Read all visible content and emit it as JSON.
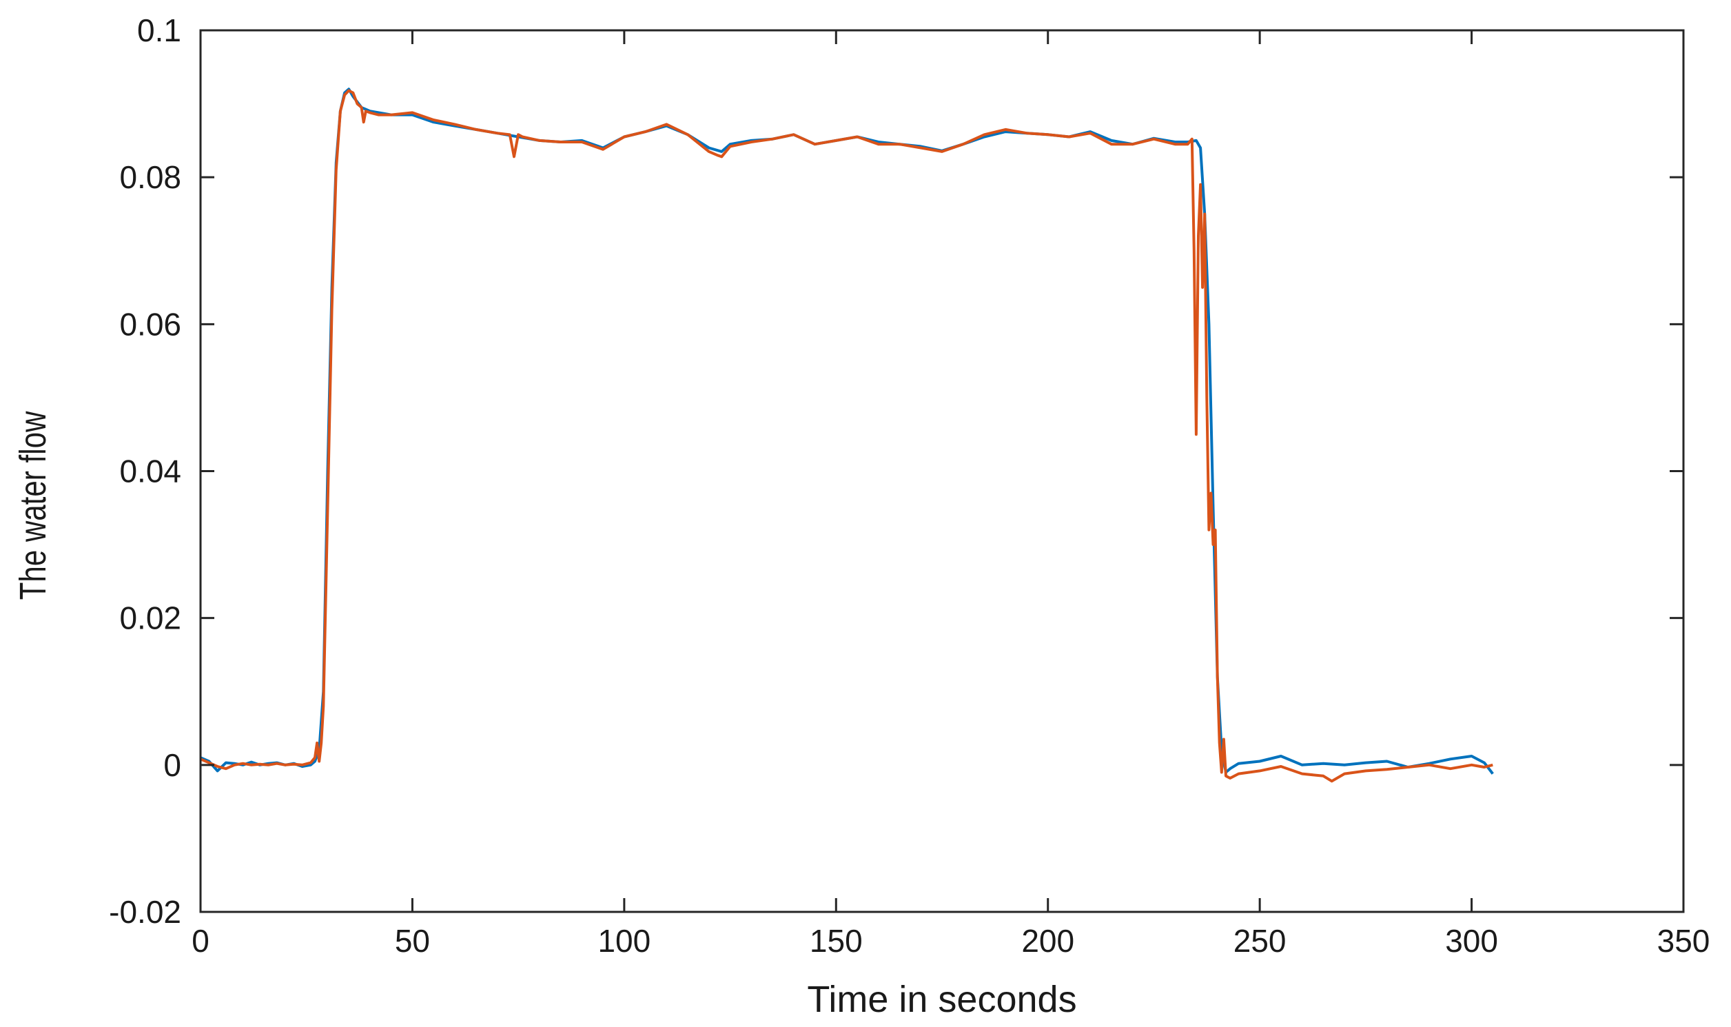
{
  "chart_data": {
    "type": "line",
    "title": "",
    "xlabel": "Time in seconds",
    "ylabel": "The water flow",
    "xlim": [
      0,
      350
    ],
    "ylim": [
      -0.02,
      0.1
    ],
    "xticks": [
      0,
      50,
      100,
      150,
      200,
      250,
      300,
      350
    ],
    "yticks": [
      -0.02,
      0,
      0.02,
      0.04,
      0.06,
      0.08,
      0.1
    ],
    "xtick_labels": [
      "0",
      "50",
      "100",
      "150",
      "200",
      "250",
      "300",
      "350"
    ],
    "ytick_labels": [
      "-0.02",
      "0",
      "0.02",
      "0.04",
      "0.06",
      "0.08",
      "0.1"
    ],
    "grid": false,
    "series": [
      {
        "color": "#0072BD",
        "x": [
          0,
          2,
          4,
          6,
          8,
          10,
          12,
          14,
          16,
          18,
          20,
          22,
          24,
          26,
          27,
          28,
          29,
          30,
          31,
          32,
          33,
          34,
          35,
          36,
          38,
          40,
          45,
          50,
          55,
          60,
          65,
          70,
          75,
          80,
          85,
          90,
          95,
          100,
          105,
          110,
          115,
          120,
          123,
          125,
          130,
          135,
          140,
          145,
          150,
          155,
          160,
          165,
          170,
          175,
          180,
          185,
          190,
          195,
          200,
          205,
          210,
          215,
          220,
          225,
          230,
          233,
          235,
          236,
          237,
          238,
          239,
          240,
          241,
          242,
          243,
          245,
          250,
          255,
          260,
          265,
          270,
          275,
          280,
          285,
          290,
          295,
          300,
          303,
          305
        ],
        "y": [
          0.001,
          0.0005,
          -0.0008,
          0.0003,
          0.0002,
          0.0,
          0.0004,
          0.0,
          0.0002,
          0.0003,
          0.0,
          0.0002,
          -0.0002,
          0.0,
          0.0005,
          0.002,
          0.01,
          0.04,
          0.065,
          0.082,
          0.089,
          0.0915,
          0.092,
          0.091,
          0.0895,
          0.089,
          0.0885,
          0.0885,
          0.0875,
          0.087,
          0.0865,
          0.086,
          0.0855,
          0.085,
          0.0848,
          0.085,
          0.084,
          0.0855,
          0.0862,
          0.087,
          0.0858,
          0.084,
          0.0835,
          0.0845,
          0.085,
          0.0852,
          0.0858,
          0.0845,
          0.085,
          0.0855,
          0.0848,
          0.0845,
          0.0842,
          0.0836,
          0.0845,
          0.0855,
          0.0862,
          0.086,
          0.0858,
          0.0855,
          0.0862,
          0.085,
          0.0845,
          0.0853,
          0.0848,
          0.0848,
          0.085,
          0.084,
          0.075,
          0.06,
          0.035,
          0.012,
          0.002,
          -0.001,
          -0.0005,
          0.0002,
          0.0005,
          0.0012,
          0.0,
          0.0002,
          0.0,
          0.0003,
          0.0005,
          -0.0003,
          0.0002,
          0.0008,
          0.0012,
          0.0003,
          -0.0012
        ]
      },
      {
        "color": "#D95319",
        "x": [
          0,
          2,
          4,
          6,
          8,
          10,
          12,
          14,
          16,
          18,
          20,
          22,
          24,
          26,
          27,
          27.5,
          28,
          28.5,
          29,
          30,
          31,
          32,
          33,
          34,
          35,
          36,
          37,
          38,
          38.5,
          39,
          40,
          42,
          45,
          50,
          55,
          60,
          65,
          70,
          73,
          74,
          75,
          76,
          80,
          85,
          90,
          95,
          100,
          105,
          110,
          115,
          120,
          122,
          123,
          125,
          130,
          135,
          140,
          145,
          150,
          155,
          160,
          165,
          170,
          175,
          180,
          185,
          190,
          195,
          200,
          205,
          210,
          215,
          220,
          225,
          230,
          233,
          234,
          234.5,
          235,
          235.5,
          236,
          236.5,
          237,
          237.5,
          238,
          238.5,
          239,
          239.5,
          240,
          240.5,
          241,
          241.5,
          242,
          243,
          245,
          250,
          255,
          260,
          265,
          267,
          270,
          275,
          280,
          285,
          290,
          295,
          300,
          303,
          305
        ],
        "y": [
          0.0008,
          0.0003,
          -0.0002,
          -0.0005,
          0.0,
          0.0002,
          0.0,
          0.0001,
          0.0,
          0.0002,
          0.0,
          0.0001,
          0.0,
          0.0003,
          0.001,
          0.003,
          0.0005,
          0.003,
          0.008,
          0.035,
          0.062,
          0.081,
          0.089,
          0.0912,
          0.0918,
          0.0915,
          0.09,
          0.0895,
          0.0875,
          0.089,
          0.0888,
          0.0885,
          0.0885,
          0.0888,
          0.0878,
          0.0872,
          0.0865,
          0.086,
          0.0858,
          0.0828,
          0.0858,
          0.0855,
          0.085,
          0.0848,
          0.0848,
          0.0838,
          0.0855,
          0.0862,
          0.0872,
          0.0858,
          0.0835,
          0.083,
          0.0828,
          0.0842,
          0.0848,
          0.0852,
          0.0858,
          0.0845,
          0.085,
          0.0855,
          0.0845,
          0.0845,
          0.084,
          0.0835,
          0.0845,
          0.0858,
          0.0865,
          0.086,
          0.0858,
          0.0855,
          0.086,
          0.0845,
          0.0845,
          0.0852,
          0.0845,
          0.0845,
          0.0852,
          0.07,
          0.045,
          0.072,
          0.079,
          0.065,
          0.075,
          0.05,
          0.032,
          0.037,
          0.03,
          0.032,
          0.012,
          0.003,
          -0.001,
          0.0035,
          -0.0015,
          -0.0018,
          -0.0012,
          -0.0008,
          -0.0002,
          -0.0012,
          -0.0015,
          -0.0022,
          -0.0012,
          -0.0008,
          -0.0006,
          -0.0003,
          0.0,
          -0.0005,
          0.0,
          -0.0003,
          0.0
        ]
      }
    ]
  }
}
